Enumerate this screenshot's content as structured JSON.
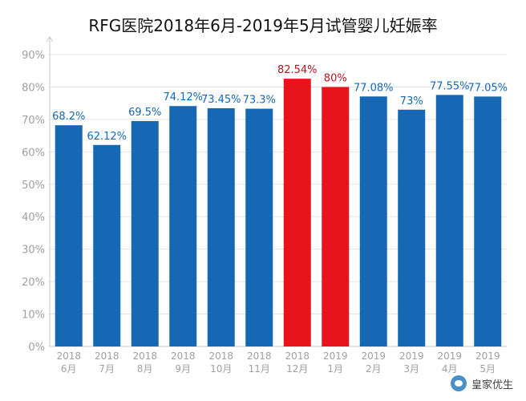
{
  "chart_data": {
    "type": "bar",
    "title": "RFG医院2018年6月-2019年5月试管婴儿妊娠率",
    "categories": [
      {
        "year": "2018",
        "month": "6月"
      },
      {
        "year": "2018",
        "month": "7月"
      },
      {
        "year": "2018",
        "month": "8月"
      },
      {
        "year": "2018",
        "month": "9月"
      },
      {
        "year": "2018",
        "month": "10月"
      },
      {
        "year": "2018",
        "month": "11月"
      },
      {
        "year": "2018",
        "month": "12月"
      },
      {
        "year": "2019",
        "month": "1月"
      },
      {
        "year": "2019",
        "month": "2月"
      },
      {
        "year": "2019",
        "month": "3月"
      },
      {
        "year": "2019",
        "month": "4月"
      },
      {
        "year": "2019",
        "month": "5月"
      }
    ],
    "values": [
      68.2,
      62.12,
      69.5,
      74.12,
      73.45,
      73.3,
      82.54,
      80,
      77.08,
      73,
      77.55,
      77.05
    ],
    "data_labels": [
      "68.2%",
      "62.12%",
      "69.5%",
      "74.12%",
      "73.45%",
      "73.3%",
      "82.54%",
      "80%",
      "77.08%",
      "73%",
      "77.55%",
      "77.05%"
    ],
    "highlighted": [
      false,
      false,
      false,
      false,
      false,
      false,
      true,
      true,
      false,
      false,
      false,
      false
    ],
    "ylim": [
      0,
      90
    ],
    "yticks": [
      0,
      10,
      20,
      30,
      40,
      50,
      60,
      70,
      80,
      90
    ],
    "ytick_labels": [
      "0%",
      "10%",
      "20%",
      "30%",
      "40%",
      "50%",
      "60%",
      "70%",
      "80%",
      "90%"
    ],
    "grid": true,
    "legend": "none",
    "colors": {
      "bar": "#1668b4",
      "bar_highlight": "#e8141c",
      "label": "#1668b4",
      "label_highlight": "#b8141c",
      "grid": "#e3e3e3",
      "tick": "#a0a0a0"
    }
  },
  "watermark": {
    "text": "皇家优生",
    "icon": "wechat-icon"
  }
}
